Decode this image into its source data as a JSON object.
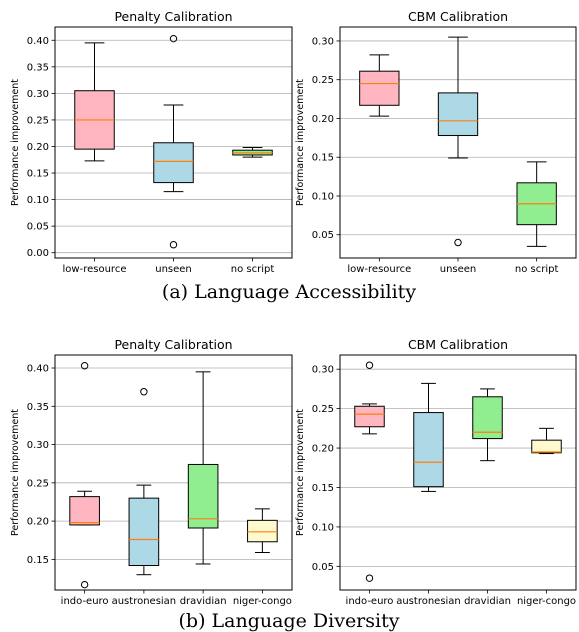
{
  "captions": [
    "(a)  Language Accessibility",
    "(b)  Language Diversity"
  ],
  "chart_data": [
    {
      "type": "boxplot",
      "title": "Penalty Calibration",
      "ylabel": "Performance improvement",
      "ylim": [
        -0.01,
        0.425
      ],
      "yticks": [
        "0.00",
        "0.05",
        "0.10",
        "0.15",
        "0.20",
        "0.25",
        "0.30",
        "0.35",
        "0.40"
      ],
      "ytick_values": [
        0.0,
        0.05,
        0.1,
        0.15,
        0.2,
        0.25,
        0.3,
        0.35,
        0.4
      ],
      "categories": [
        "low-resource",
        "unseen",
        "no script"
      ],
      "boxes": [
        {
          "whislo": 0.173,
          "q1": 0.195,
          "med": 0.25,
          "q3": 0.305,
          "whishi": 0.395,
          "fliers": []
        },
        {
          "whislo": 0.115,
          "q1": 0.132,
          "med": 0.172,
          "q3": 0.207,
          "whishi": 0.278,
          "fliers": [
            0.403,
            0.015
          ]
        },
        {
          "whislo": 0.18,
          "q1": 0.184,
          "med": 0.188,
          "q3": 0.193,
          "whishi": 0.198,
          "fliers": []
        }
      ],
      "colors": [
        "#ffb6c1",
        "#add8e6",
        "#90ee90"
      ],
      "grid": "y"
    },
    {
      "type": "boxplot",
      "title": "CBM Calibration",
      "ylabel": "Performance improvement",
      "ylim": [
        0.02,
        0.318
      ],
      "yticks": [
        "0.05",
        "0.10",
        "0.15",
        "0.20",
        "0.25",
        "0.30"
      ],
      "ytick_values": [
        0.05,
        0.1,
        0.15,
        0.2,
        0.25,
        0.3
      ],
      "categories": [
        "low-resource",
        "unseen",
        "no script"
      ],
      "boxes": [
        {
          "whislo": 0.203,
          "q1": 0.217,
          "med": 0.245,
          "q3": 0.261,
          "whishi": 0.282,
          "fliers": []
        },
        {
          "whislo": 0.149,
          "q1": 0.178,
          "med": 0.197,
          "q3": 0.233,
          "whishi": 0.305,
          "fliers": [
            0.04
          ]
        },
        {
          "whislo": 0.035,
          "q1": 0.063,
          "med": 0.09,
          "q3": 0.117,
          "whishi": 0.144,
          "fliers": []
        }
      ],
      "colors": [
        "#ffb6c1",
        "#add8e6",
        "#90ee90"
      ],
      "grid": "y"
    },
    {
      "type": "boxplot",
      "title": "Penalty Calibration",
      "ylabel": "Performance improvement",
      "ylim": [
        0.11,
        0.417
      ],
      "yticks": [
        "0.15",
        "0.20",
        "0.25",
        "0.30",
        "0.35",
        "0.40"
      ],
      "ytick_values": [
        0.15,
        0.2,
        0.25,
        0.3,
        0.35,
        0.4
      ],
      "categories": [
        "indo-euro",
        "austronesian",
        "dravidian",
        "niger-congo"
      ],
      "boxes": [
        {
          "whislo": 0.195,
          "q1": 0.195,
          "med": 0.198,
          "q3": 0.232,
          "whishi": 0.239,
          "fliers": [
            0.403,
            0.117
          ]
        },
        {
          "whislo": 0.13,
          "q1": 0.142,
          "med": 0.176,
          "q3": 0.23,
          "whishi": 0.247,
          "fliers": [
            0.369
          ]
        },
        {
          "whislo": 0.144,
          "q1": 0.191,
          "med": 0.203,
          "q3": 0.274,
          "whishi": 0.395,
          "fliers": []
        },
        {
          "whislo": 0.159,
          "q1": 0.173,
          "med": 0.186,
          "q3": 0.201,
          "whishi": 0.216,
          "fliers": []
        }
      ],
      "colors": [
        "#ffb6c1",
        "#add8e6",
        "#90ee90",
        "#fffacd"
      ],
      "grid": "y"
    },
    {
      "type": "boxplot",
      "title": "CBM Calibration",
      "ylabel": "Performance improvement",
      "ylim": [
        0.02,
        0.318
      ],
      "yticks": [
        "0.05",
        "0.10",
        "0.15",
        "0.20",
        "0.25",
        "0.30"
      ],
      "ytick_values": [
        0.05,
        0.1,
        0.15,
        0.2,
        0.25,
        0.3
      ],
      "categories": [
        "indo-euro",
        "austronesian",
        "dravidian",
        "niger-congo"
      ],
      "boxes": [
        {
          "whislo": 0.218,
          "q1": 0.227,
          "med": 0.243,
          "q3": 0.253,
          "whishi": 0.256,
          "fliers": [
            0.305,
            0.035
          ]
        },
        {
          "whislo": 0.145,
          "q1": 0.151,
          "med": 0.182,
          "q3": 0.245,
          "whishi": 0.282,
          "fliers": []
        },
        {
          "whislo": 0.184,
          "q1": 0.212,
          "med": 0.22,
          "q3": 0.265,
          "whishi": 0.275,
          "fliers": []
        },
        {
          "whislo": 0.193,
          "q1": 0.194,
          "med": 0.195,
          "q3": 0.21,
          "whishi": 0.225,
          "fliers": []
        }
      ],
      "colors": [
        "#ffb6c1",
        "#add8e6",
        "#90ee90",
        "#fffacd"
      ],
      "grid": "y"
    }
  ]
}
